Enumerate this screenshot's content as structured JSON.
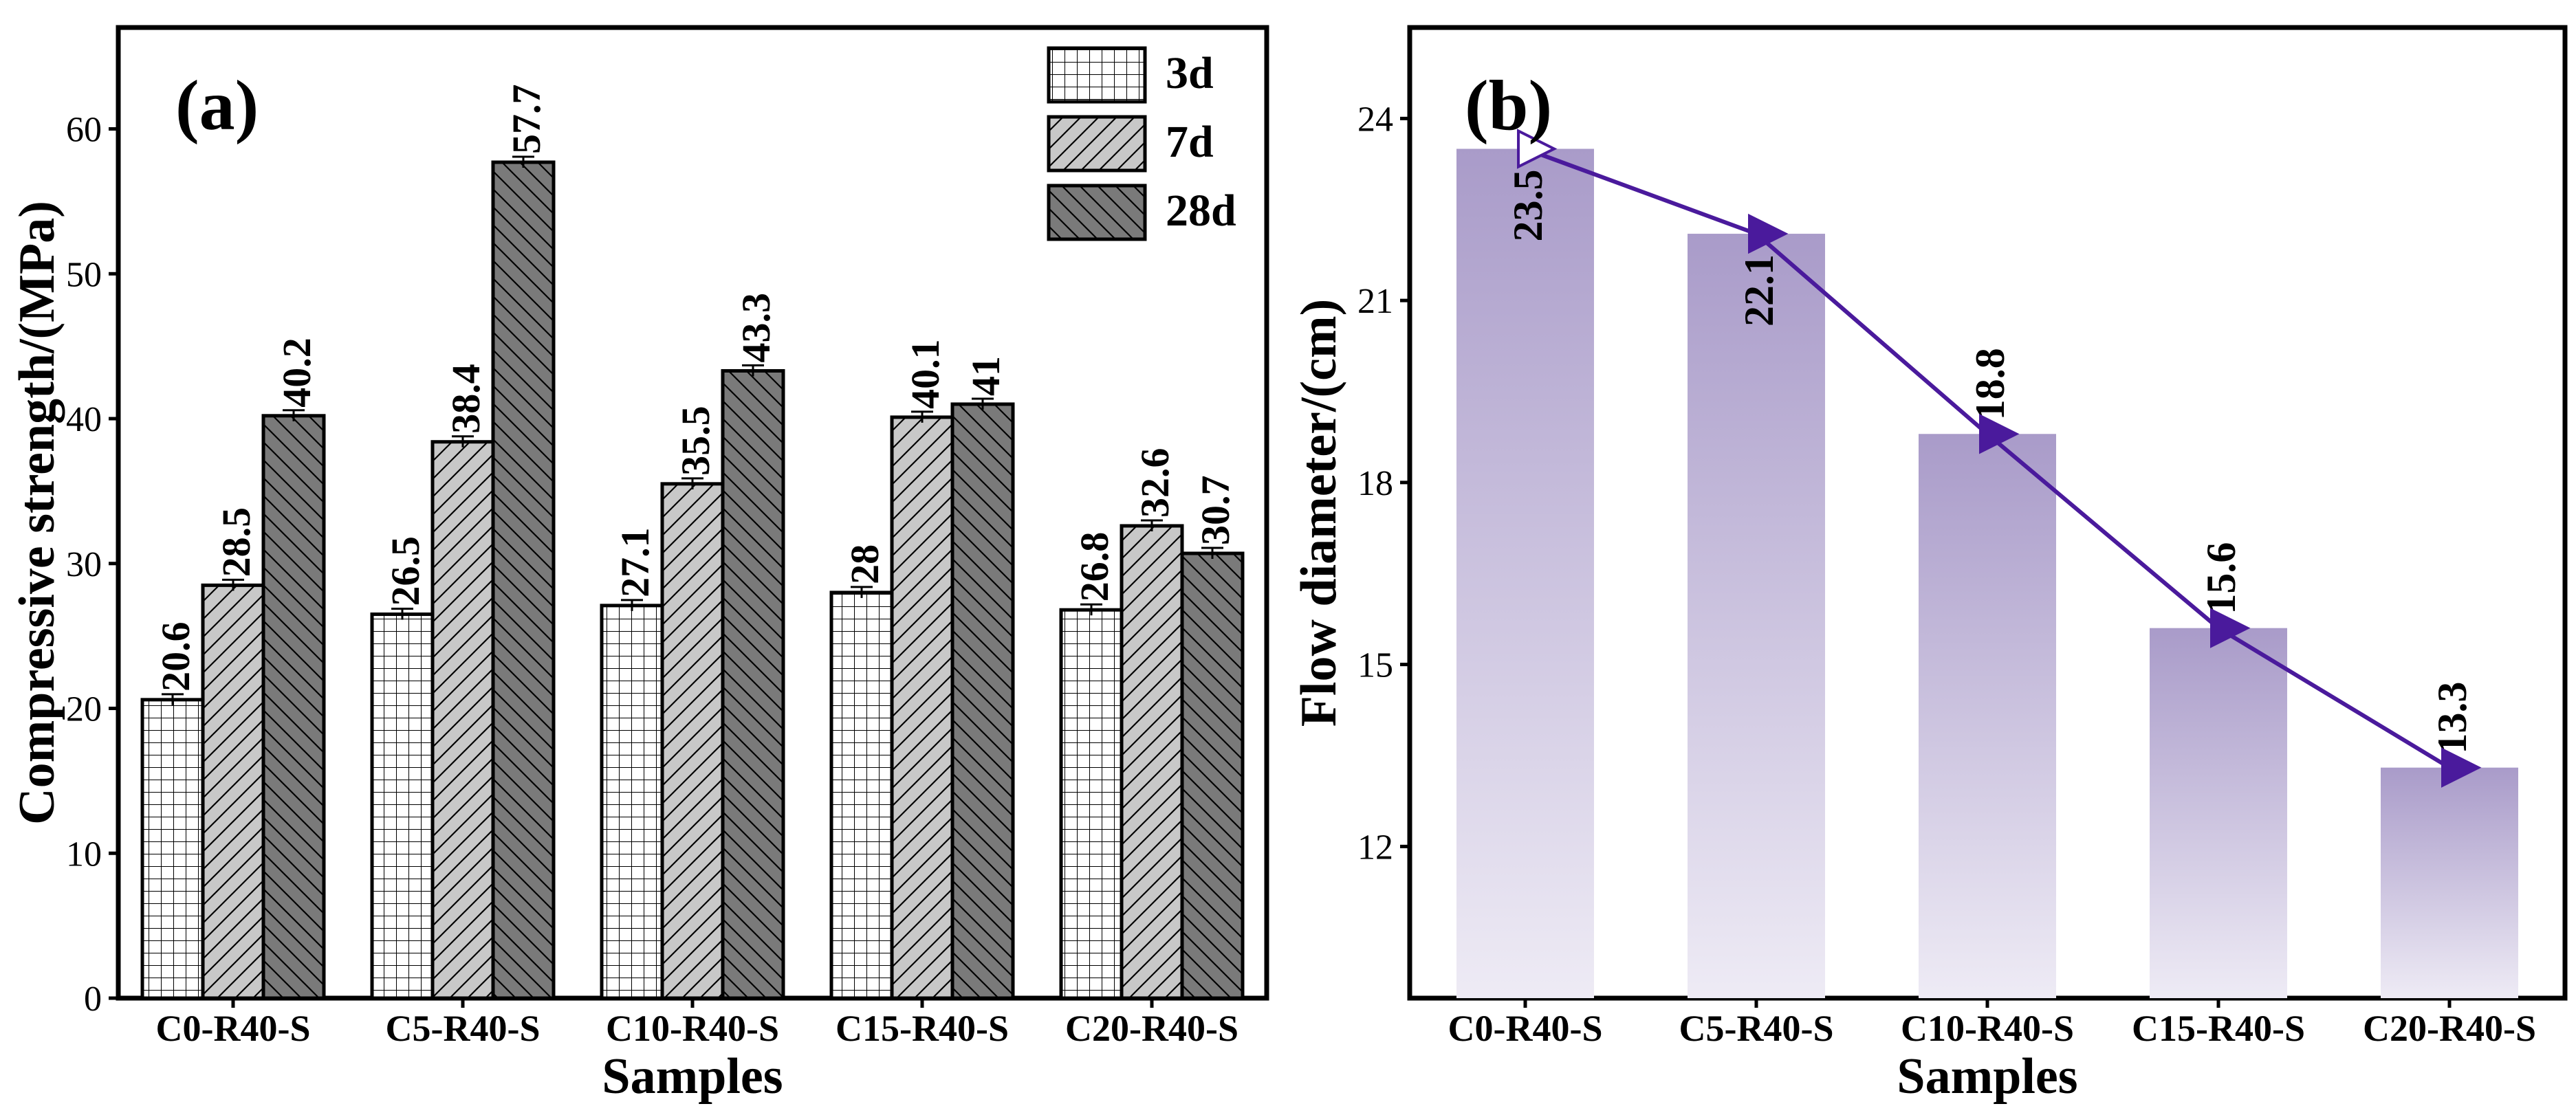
{
  "chart_data": [
    {
      "type": "bar",
      "panel_label": "(a)",
      "xlabel": "Samples",
      "ylabel": "Compressive strength/(MPa)",
      "ylim": [
        0,
        67
      ],
      "yticks": [
        0,
        10,
        20,
        30,
        40,
        50,
        60
      ],
      "categories": [
        "C0-R40-S",
        "C5-R40-S",
        "C10-R40-S",
        "C15-R40-S",
        "C20-R40-S"
      ],
      "series": [
        {
          "name": "3d",
          "pattern": "grid",
          "color": "#ffffff",
          "values": [
            20.6,
            26.5,
            27.1,
            28,
            26.8
          ],
          "labels": [
            "20.6",
            "26.5",
            "27.1",
            "28",
            "26.8"
          ]
        },
        {
          "name": "7d",
          "pattern": "hatch-light",
          "color": "#c8c8c8",
          "values": [
            28.5,
            38.4,
            35.5,
            40.1,
            32.6
          ],
          "labels": [
            "28.5",
            "38.4",
            "35.5",
            "40.1",
            "32.6"
          ]
        },
        {
          "name": "28d",
          "pattern": "hatch-dark",
          "color": "#7a7a7a",
          "values": [
            40.2,
            57.7,
            43.3,
            41,
            30.7
          ],
          "labels": [
            "40.2",
            "57.7",
            "43.3",
            "41",
            "30.7"
          ]
        }
      ],
      "legend": "top-right",
      "grid": false
    },
    {
      "type": "bar",
      "panel_label": "(b)",
      "xlabel": "Samples",
      "ylabel": "Flow diameter/(cm)",
      "ylim": [
        9.5,
        25.5
      ],
      "yticks": [
        12,
        15,
        18,
        21,
        24
      ],
      "categories": [
        "C0-R40-S",
        "C5-R40-S",
        "C10-R40-S",
        "C15-R40-S",
        "C20-R40-S"
      ],
      "values": [
        23.5,
        22.1,
        18.8,
        15.6,
        13.3
      ],
      "labels": [
        "23.5",
        "22.1",
        "18.8",
        "15.6",
        "13.3"
      ],
      "bar_color": "#a99bc9",
      "line_color": "#4a1a9c",
      "overlay": "line-with-triangle-markers",
      "grid": false
    }
  ]
}
